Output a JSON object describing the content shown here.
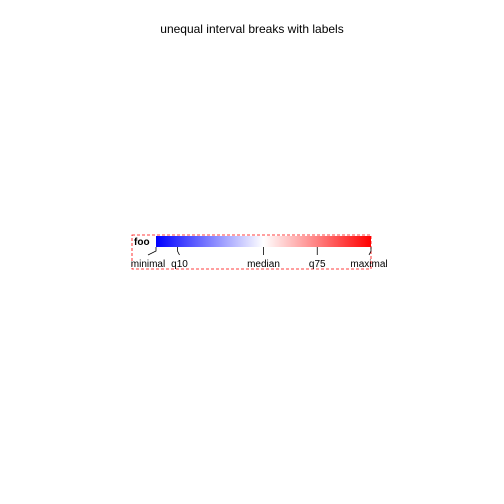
{
  "plot": {
    "title": "unequal interval breaks with labels"
  },
  "legend": {
    "title": "foo",
    "colors": {
      "low": "#0000FF",
      "mid": "#FFFFFF",
      "high": "#FF0000",
      "outline": "#FF0000"
    },
    "scale": {
      "min": 0,
      "max": 1
    },
    "breaks": [
      {
        "label": "minimal",
        "value": 0.0
      },
      {
        "label": "q10",
        "value": 0.1
      },
      {
        "label": "median",
        "value": 0.5
      },
      {
        "label": "q75",
        "value": 0.75
      },
      {
        "label": "maximal",
        "value": 1.0
      }
    ]
  }
}
